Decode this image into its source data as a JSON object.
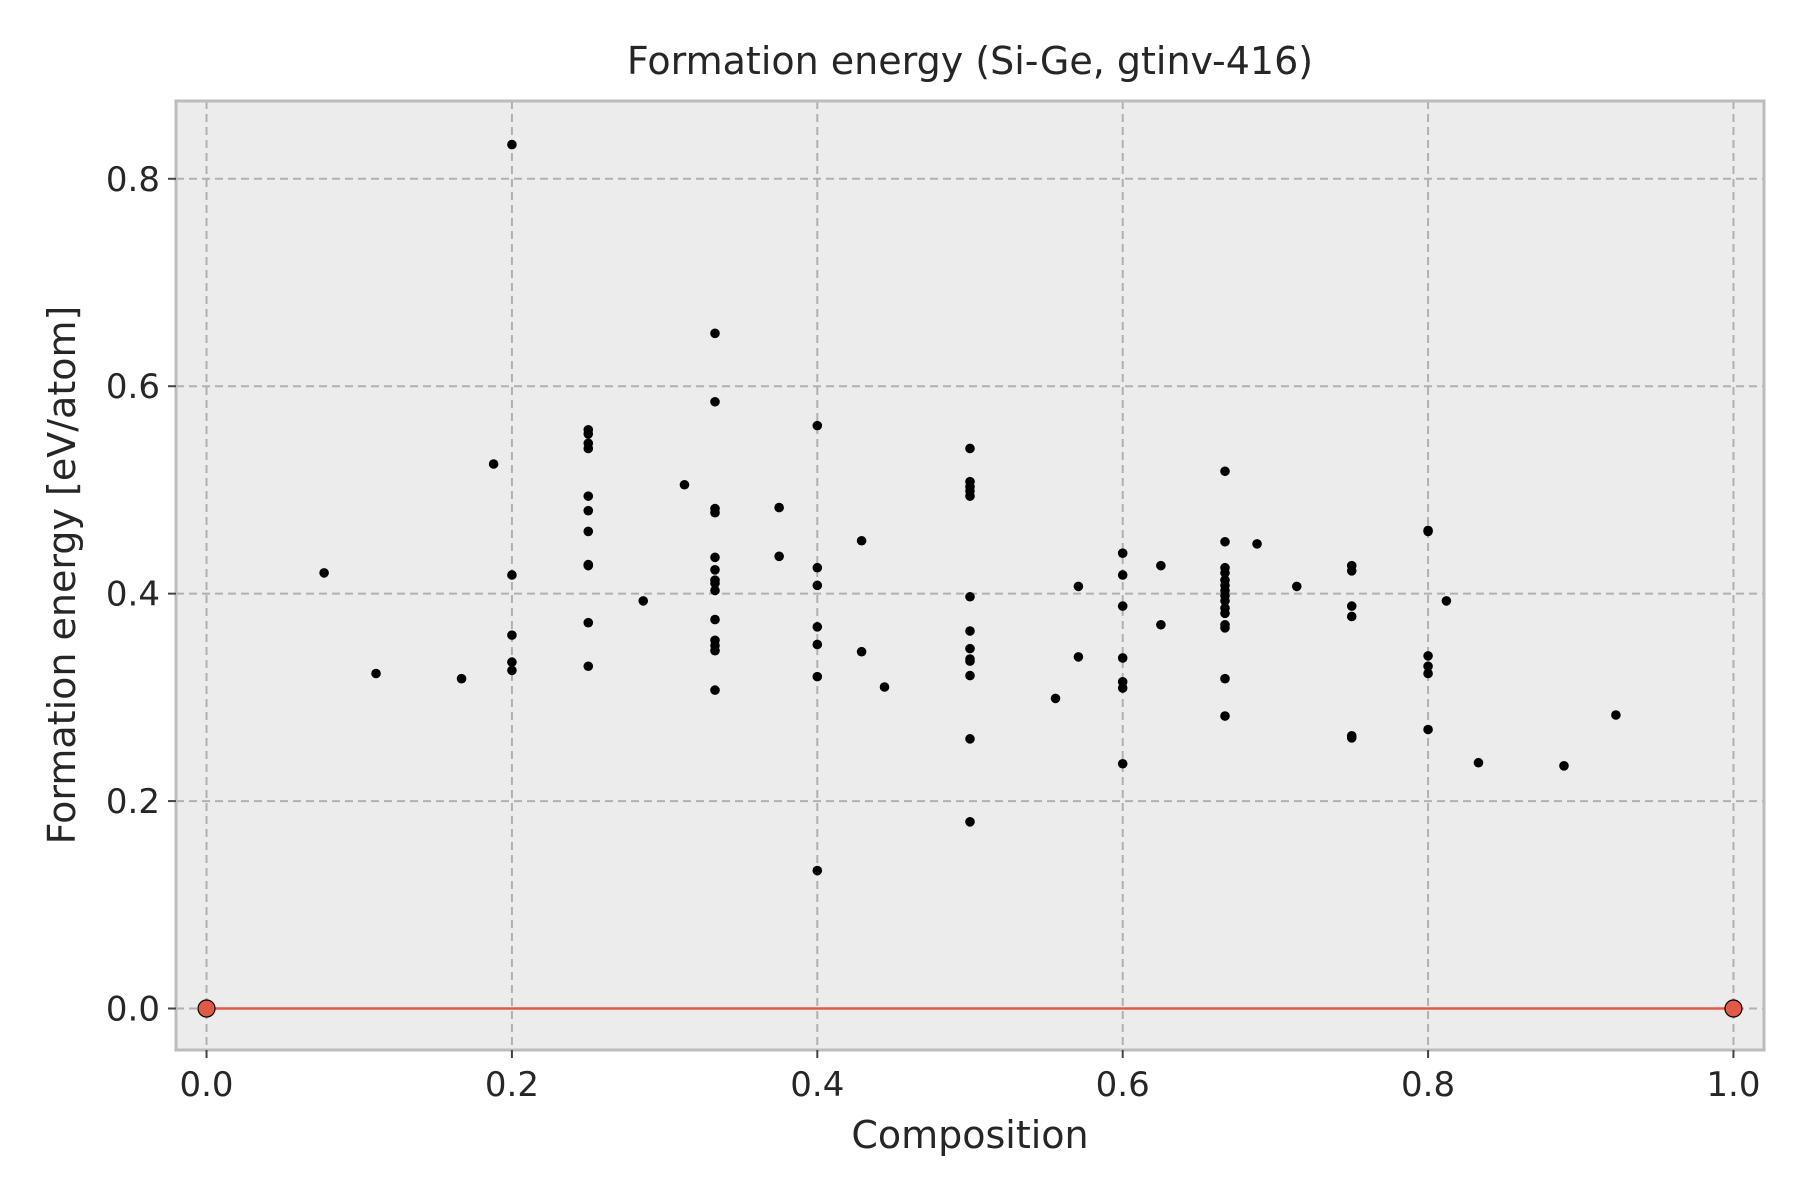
{
  "chart_data": {
    "type": "scatter",
    "title": "Formation energy (Si-Ge, gtinv-416)",
    "xlabel": "Composition",
    "ylabel": "Formation energy [eV/atom]",
    "xlim": [
      -0.02,
      1.02
    ],
    "ylim": [
      -0.04,
      0.875
    ],
    "xticks": [
      0.0,
      0.2,
      0.4,
      0.6,
      0.8,
      1.0
    ],
    "xtick_labels": [
      "0.0",
      "0.2",
      "0.4",
      "0.6",
      "0.8",
      "1.0"
    ],
    "yticks": [
      0.0,
      0.2,
      0.4,
      0.6,
      0.8
    ],
    "ytick_labels": [
      "0.0",
      "0.2",
      "0.4",
      "0.6",
      "0.8"
    ],
    "grid": true,
    "colors": {
      "points": "#000000",
      "hull_line": "#e05a46",
      "hull_points": "#e05a46",
      "background": "#ececec",
      "grid": "#b0b0b0",
      "frame": "#bcbcbc"
    },
    "series": [
      {
        "marker": "dot",
        "points": [
          [
            0.077,
            0.42
          ],
          [
            0.111,
            0.323
          ],
          [
            0.167,
            0.318
          ],
          [
            0.188,
            0.525
          ],
          [
            0.2,
            0.833
          ],
          [
            0.2,
            0.418
          ],
          [
            0.2,
            0.36
          ],
          [
            0.2,
            0.334
          ],
          [
            0.2,
            0.326
          ],
          [
            0.25,
            0.558
          ],
          [
            0.25,
            0.554
          ],
          [
            0.25,
            0.545
          ],
          [
            0.25,
            0.54
          ],
          [
            0.25,
            0.494
          ],
          [
            0.25,
            0.48
          ],
          [
            0.25,
            0.46
          ],
          [
            0.25,
            0.428
          ],
          [
            0.25,
            0.427
          ],
          [
            0.25,
            0.372
          ],
          [
            0.25,
            0.33
          ],
          [
            0.286,
            0.393
          ],
          [
            0.313,
            0.505
          ],
          [
            0.333,
            0.651
          ],
          [
            0.333,
            0.585
          ],
          [
            0.333,
            0.482
          ],
          [
            0.333,
            0.478
          ],
          [
            0.333,
            0.435
          ],
          [
            0.333,
            0.423
          ],
          [
            0.333,
            0.413
          ],
          [
            0.333,
            0.41
          ],
          [
            0.333,
            0.403
          ],
          [
            0.333,
            0.375
          ],
          [
            0.333,
            0.355
          ],
          [
            0.333,
            0.35
          ],
          [
            0.333,
            0.345
          ],
          [
            0.333,
            0.307
          ],
          [
            0.375,
            0.483
          ],
          [
            0.375,
            0.436
          ],
          [
            0.4,
            0.562
          ],
          [
            0.4,
            0.425
          ],
          [
            0.4,
            0.408
          ],
          [
            0.4,
            0.368
          ],
          [
            0.4,
            0.351
          ],
          [
            0.4,
            0.32
          ],
          [
            0.4,
            0.133
          ],
          [
            0.429,
            0.451
          ],
          [
            0.429,
            0.344
          ],
          [
            0.444,
            0.31
          ],
          [
            0.5,
            0.54
          ],
          [
            0.5,
            0.508
          ],
          [
            0.5,
            0.503
          ],
          [
            0.5,
            0.499
          ],
          [
            0.5,
            0.494
          ],
          [
            0.5,
            0.397
          ],
          [
            0.5,
            0.364
          ],
          [
            0.5,
            0.347
          ],
          [
            0.5,
            0.337
          ],
          [
            0.5,
            0.335
          ],
          [
            0.5,
            0.321
          ],
          [
            0.5,
            0.26
          ],
          [
            0.5,
            0.18
          ],
          [
            0.556,
            0.299
          ],
          [
            0.571,
            0.407
          ],
          [
            0.571,
            0.339
          ],
          [
            0.6,
            0.439
          ],
          [
            0.6,
            0.418
          ],
          [
            0.6,
            0.388
          ],
          [
            0.6,
            0.338
          ],
          [
            0.6,
            0.315
          ],
          [
            0.6,
            0.309
          ],
          [
            0.6,
            0.236
          ],
          [
            0.625,
            0.427
          ],
          [
            0.625,
            0.37
          ],
          [
            0.667,
            0.518
          ],
          [
            0.667,
            0.45
          ],
          [
            0.667,
            0.425
          ],
          [
            0.667,
            0.42
          ],
          [
            0.667,
            0.413
          ],
          [
            0.667,
            0.408
          ],
          [
            0.667,
            0.403
          ],
          [
            0.667,
            0.398
          ],
          [
            0.667,
            0.393
          ],
          [
            0.667,
            0.386
          ],
          [
            0.667,
            0.381
          ],
          [
            0.667,
            0.37
          ],
          [
            0.667,
            0.367
          ],
          [
            0.667,
            0.318
          ],
          [
            0.667,
            0.282
          ],
          [
            0.688,
            0.448
          ],
          [
            0.714,
            0.407
          ],
          [
            0.75,
            0.427
          ],
          [
            0.75,
            0.422
          ],
          [
            0.75,
            0.388
          ],
          [
            0.75,
            0.378
          ],
          [
            0.75,
            0.263
          ],
          [
            0.75,
            0.261
          ],
          [
            0.8,
            0.461
          ],
          [
            0.8,
            0.46
          ],
          [
            0.8,
            0.34
          ],
          [
            0.8,
            0.33
          ],
          [
            0.8,
            0.323
          ],
          [
            0.8,
            0.269
          ],
          [
            0.812,
            0.393
          ],
          [
            0.833,
            0.237
          ],
          [
            0.889,
            0.234
          ],
          [
            0.923,
            0.283
          ]
        ]
      },
      {
        "marker": "hull",
        "points": [
          [
            0.0,
            0.0
          ],
          [
            1.0,
            0.0
          ]
        ]
      }
    ]
  }
}
